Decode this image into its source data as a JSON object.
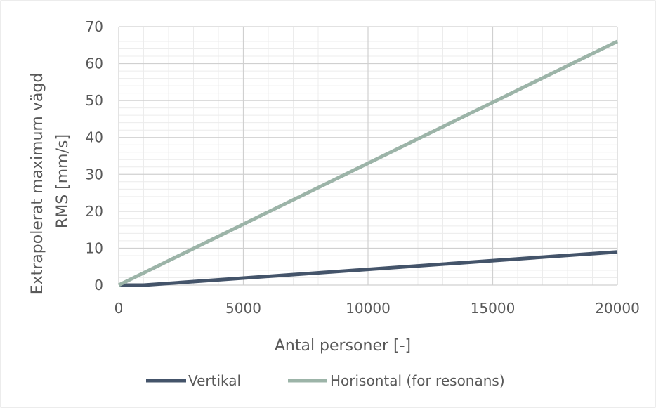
{
  "chart_data": {
    "type": "line",
    "title": "",
    "xlabel": "Antal personer [-]",
    "ylabel_lines": [
      "Extrapolerat maximum vägd",
      "RMS [mm/s]"
    ],
    "xlim": [
      0,
      20000
    ],
    "ylim": [
      0,
      70
    ],
    "x_ticks": [
      0,
      5000,
      10000,
      15000,
      20000
    ],
    "y_ticks": [
      0,
      10,
      20,
      30,
      40,
      50,
      60,
      70
    ],
    "x_minor_step": 1000,
    "y_minor_step": 2,
    "grid": true,
    "legend_position": "bottom",
    "series": [
      {
        "name": "Vertikal",
        "color": "#44546a",
        "x": [
          0,
          1000,
          20000
        ],
        "values": [
          0,
          0,
          9
        ]
      },
      {
        "name": "Horisontal (for resonans)",
        "color": "#9cb4a8",
        "x": [
          0,
          20000
        ],
        "values": [
          0,
          66
        ]
      }
    ]
  }
}
